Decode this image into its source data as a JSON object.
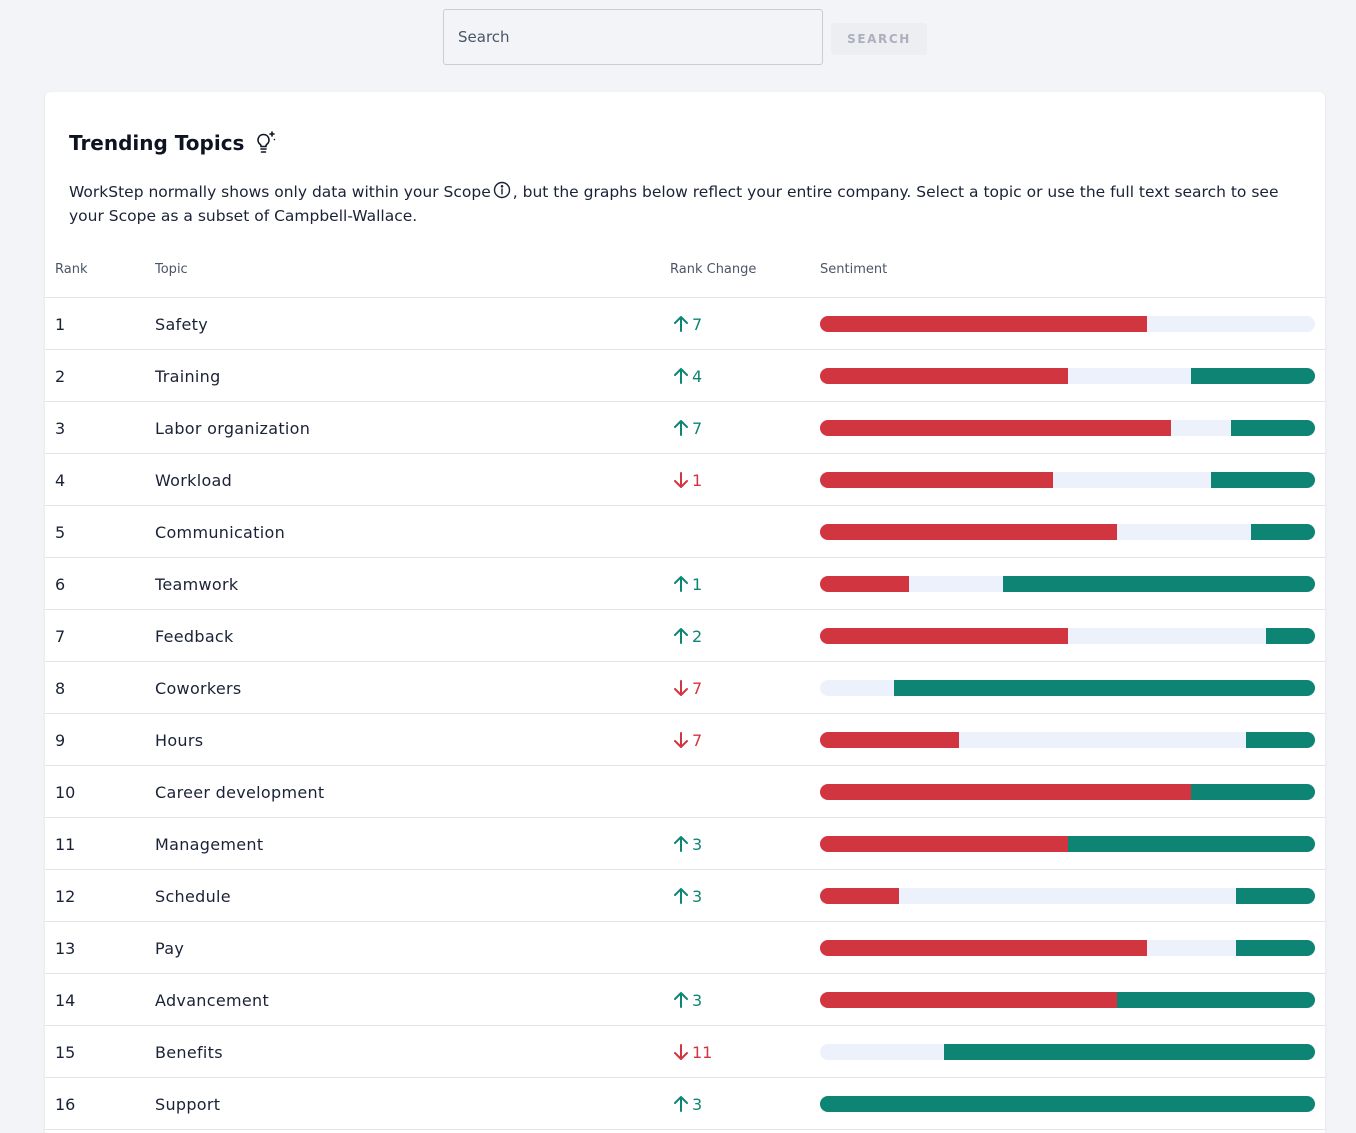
{
  "search": {
    "placeholder": "Search",
    "button_label": "SEARCH"
  },
  "card": {
    "title": "Trending Topics",
    "description_before": "WorkStep normally shows only data within your Scope",
    "description_after": ", but the graphs below reflect your entire company. Select a topic or use the full text search to see your Scope as a subset of Campbell-Wallace."
  },
  "table": {
    "headers": {
      "rank": "Rank",
      "topic": "Topic",
      "rank_change": "Rank Change",
      "sentiment": "Sentiment"
    },
    "rows": [
      {
        "rank": "1",
        "topic": "Safety",
        "dir": "up",
        "change": "7",
        "neg": 0.66,
        "pos": 0
      },
      {
        "rank": "2",
        "topic": "Training",
        "dir": "up",
        "change": "4",
        "neg": 0.5,
        "pos": 0.25
      },
      {
        "rank": "3",
        "topic": "Labor organization",
        "dir": "up",
        "change": "7",
        "neg": 0.71,
        "pos": 0.17
      },
      {
        "rank": "4",
        "topic": "Workload",
        "dir": "down",
        "change": "1",
        "neg": 0.47,
        "pos": 0.21
      },
      {
        "rank": "5",
        "topic": "Communication",
        "dir": "",
        "change": "",
        "neg": 0.6,
        "pos": 0.13
      },
      {
        "rank": "6",
        "topic": "Teamwork",
        "dir": "up",
        "change": "1",
        "neg": 0.18,
        "pos": 0.63
      },
      {
        "rank": "7",
        "topic": "Feedback",
        "dir": "up",
        "change": "2",
        "neg": 0.5,
        "pos": 0.1
      },
      {
        "rank": "8",
        "topic": "Coworkers",
        "dir": "down",
        "change": "7",
        "neg": 0,
        "pos": 0.85
      },
      {
        "rank": "9",
        "topic": "Hours",
        "dir": "down",
        "change": "7",
        "neg": 0.28,
        "pos": 0.14
      },
      {
        "rank": "10",
        "topic": "Career development",
        "dir": "",
        "change": "",
        "neg": 0.75,
        "pos": 0.25
      },
      {
        "rank": "11",
        "topic": "Management",
        "dir": "up",
        "change": "3",
        "neg": 0.5,
        "pos": 0.5
      },
      {
        "rank": "12",
        "topic": "Schedule",
        "dir": "up",
        "change": "3",
        "neg": 0.16,
        "pos": 0.16
      },
      {
        "rank": "13",
        "topic": "Pay",
        "dir": "",
        "change": "",
        "neg": 0.66,
        "pos": 0.16
      },
      {
        "rank": "14",
        "topic": "Advancement",
        "dir": "up",
        "change": "3",
        "neg": 0.6,
        "pos": 0.4
      },
      {
        "rank": "15",
        "topic": "Benefits",
        "dir": "down",
        "change": "11",
        "neg": 0,
        "pos": 0.75
      },
      {
        "rank": "16",
        "topic": "Support",
        "dir": "up",
        "change": "3",
        "neg": 0,
        "pos": 1.0
      }
    ]
  },
  "colors": {
    "negative": "#d03540",
    "positive": "#0e8474",
    "neutral": "#edf1fb",
    "rank_up": "#0e8474",
    "rank_down": "#d03540"
  },
  "icons": {
    "title_icon": "lightbulb-sparkle-icon",
    "info_icon": "info-circle-icon",
    "up_icon": "arrow-up-icon",
    "down_icon": "arrow-down-icon"
  }
}
